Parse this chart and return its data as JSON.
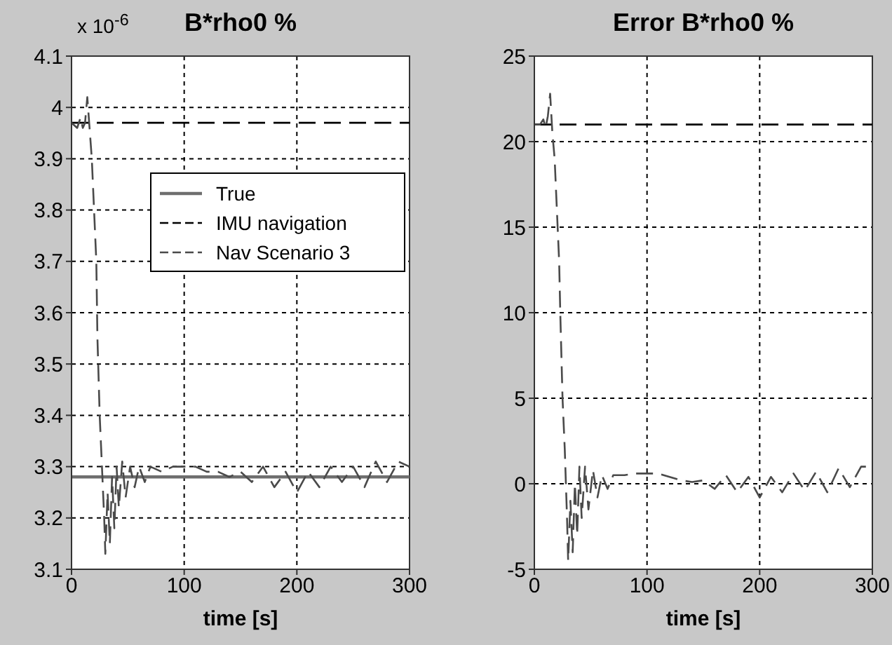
{
  "chart_data": [
    {
      "type": "line",
      "title": "B*rho0 %",
      "xlabel": "time [s]",
      "annotations": [
        "x 10$^{-6}$"
      ],
      "xlim": [
        0,
        300
      ],
      "xticks": [
        0,
        100,
        200,
        300
      ],
      "ylim": [
        3.1,
        4.1
      ],
      "yticks": [
        3.1,
        3.2,
        3.3,
        3.4,
        3.5,
        3.6,
        3.7,
        3.8,
        3.9,
        4,
        4.1
      ],
      "grid": true,
      "legend": "top right",
      "series": [
        {
          "name": "True",
          "color": "#6e6e6e",
          "line_style": "solid",
          "x": [
            0,
            300
          ],
          "values": [
            3.28,
            3.28
          ]
        },
        {
          "name": "IMU navigation",
          "color": "#000000",
          "line_style": "dashed",
          "x": [
            0,
            300
          ],
          "values": [
            3.97,
            3.97
          ]
        },
        {
          "name": "Nav Scenario 3",
          "color": "#4a4a4a",
          "line_style": "dashed",
          "x": [
            0,
            5,
            8,
            10,
            12,
            14,
            16,
            18,
            20,
            22,
            23,
            25,
            27,
            29,
            30,
            32,
            34,
            36,
            38,
            40,
            42,
            45,
            48,
            52,
            56,
            60,
            65,
            70,
            80,
            90,
            100,
            110,
            120,
            130,
            140,
            150,
            160,
            170,
            180,
            190,
            200,
            210,
            220,
            230,
            240,
            250,
            260,
            270,
            280,
            290,
            300
          ],
          "values": [
            3.97,
            3.96,
            3.98,
            3.96,
            3.97,
            4.02,
            3.96,
            3.9,
            3.8,
            3.7,
            3.55,
            3.4,
            3.3,
            3.2,
            3.13,
            3.25,
            3.15,
            3.28,
            3.18,
            3.3,
            3.22,
            3.31,
            3.24,
            3.3,
            3.26,
            3.3,
            3.27,
            3.3,
            3.29,
            3.3,
            3.3,
            3.3,
            3.29,
            3.29,
            3.28,
            3.29,
            3.27,
            3.3,
            3.26,
            3.29,
            3.25,
            3.29,
            3.26,
            3.3,
            3.27,
            3.3,
            3.26,
            3.31,
            3.27,
            3.31,
            3.3
          ]
        }
      ]
    },
    {
      "type": "line",
      "title": "Error B*rho0 %",
      "xlabel": "time [s]",
      "xlim": [
        0,
        300
      ],
      "xticks": [
        0,
        100,
        200,
        300
      ],
      "ylim": [
        -5,
        25
      ],
      "yticks": [
        -5,
        0,
        5,
        10,
        15,
        20,
        25
      ],
      "grid": true,
      "series": [
        {
          "color": "#000000",
          "line_style": "dashed",
          "x": [
            0,
            300
          ],
          "values": [
            21,
            21
          ]
        },
        {
          "color": "#4a4a4a",
          "line_style": "dashed",
          "x": [
            0,
            5,
            8,
            10,
            12,
            14,
            16,
            18,
            20,
            22,
            23,
            25,
            27,
            29,
            30,
            32,
            34,
            36,
            38,
            40,
            42,
            45,
            48,
            52,
            56,
            60,
            65,
            70,
            80,
            90,
            100,
            110,
            120,
            130,
            140,
            150,
            160,
            170,
            180,
            190,
            200,
            210,
            220,
            230,
            240,
            250,
            260,
            270,
            280,
            290,
            300
          ],
          "values": [
            21,
            21,
            21.3,
            20.8,
            21.5,
            22.8,
            20.5,
            19,
            16,
            13,
            10,
            5,
            2,
            -2,
            -4.5,
            -1,
            -4,
            0,
            -3,
            1,
            -2,
            1,
            -1.5,
            0.8,
            -0.8,
            0.5,
            -0.3,
            0.5,
            0.5,
            0.6,
            0.6,
            0.6,
            0.4,
            0.2,
            0.1,
            0.2,
            -0.3,
            0.5,
            -0.5,
            0.4,
            -0.8,
            0.4,
            -0.5,
            0.6,
            -0.4,
            0.7,
            -0.5,
            0.9,
            -0.2,
            1,
            1
          ]
        }
      ]
    }
  ]
}
